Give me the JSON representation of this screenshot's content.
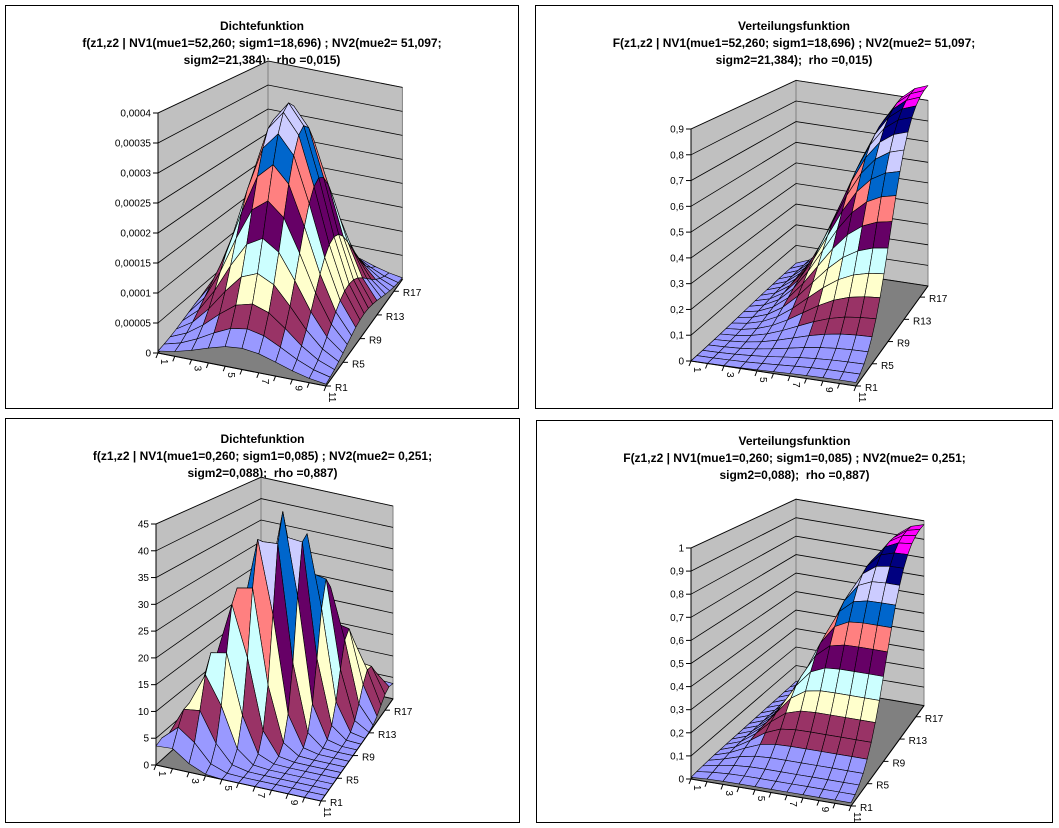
{
  "chart_data": [
    {
      "type": "heatmap",
      "surface": "3d-surface",
      "title": [
        "Dichtefunktion",
        "f(z1,z2 | NV1(mue1=52,260; sigm1=18,696) ; NV2(mue2= 51,097;",
        "sigm2=21,384);  rho =0,015)"
      ],
      "function": "density",
      "params": {
        "mue1": 52.26,
        "sigm1": 18.696,
        "mue2": 51.097,
        "sigm2": 21.384,
        "rho": 0.015
      },
      "z_axis": {
        "min": 0,
        "max": 0.0004,
        "ticks": [
          "0",
          "0,00005",
          "0,0001",
          "0,00015",
          "0,0002",
          "0,00025",
          "0,0003",
          "0,00035",
          "0,0004"
        ]
      },
      "x_tick_labels": [
        "1",
        "3",
        "5",
        "7",
        "9",
        "11"
      ],
      "series_tick_labels": [
        "R1",
        "R5",
        "R9",
        "R13",
        "R17"
      ],
      "grid": true
    },
    {
      "type": "heatmap",
      "surface": "3d-surface",
      "title": [
        "Verteilungsfunktion",
        "F(z1,z2 | NV1(mue1=52,260; sigm1=18,696) ; NV2(mue2= 51,097;",
        "sigm2=21,384);  rho =0,015)"
      ],
      "function": "distribution",
      "params": {
        "mue1": 52.26,
        "sigm1": 18.696,
        "mue2": 51.097,
        "sigm2": 21.384,
        "rho": 0.015
      },
      "z_axis": {
        "min": 0,
        "max": 0.9,
        "ticks": [
          "0",
          "0,1",
          "0,2",
          "0,3",
          "0,4",
          "0,5",
          "0,6",
          "0,7",
          "0,8",
          "0,9"
        ]
      },
      "x_tick_labels": [
        "1",
        "3",
        "5",
        "7",
        "9",
        "11"
      ],
      "series_tick_labels": [
        "R1",
        "R5",
        "R9",
        "R13",
        "R17"
      ],
      "grid": true
    },
    {
      "type": "heatmap",
      "surface": "3d-surface",
      "title": [
        "Dichtefunktion",
        "f(z1,z2 | NV1(mue1=0,260; sigm1=0,085) ; NV2(mue2= 0,251;",
        "sigm2=0,088);  rho =0,887)"
      ],
      "function": "density",
      "params": {
        "mue1": 0.26,
        "sigm1": 0.085,
        "mue2": 0.251,
        "sigm2": 0.088,
        "rho": 0.887
      },
      "z_axis": {
        "min": 0,
        "max": 45,
        "ticks": [
          "0",
          "5",
          "10",
          "15",
          "20",
          "25",
          "30",
          "35",
          "40",
          "45"
        ]
      },
      "x_tick_labels": [
        "1",
        "3",
        "5",
        "7",
        "9",
        "11"
      ],
      "series_tick_labels": [
        "R1",
        "R5",
        "R9",
        "R13",
        "R17"
      ],
      "grid": true
    },
    {
      "type": "heatmap",
      "surface": "3d-surface",
      "title": [
        "Verteilungsfunktion",
        "F(z1,z2 | NV1(mue1=0,260; sigm1=0,085) ; NV2(mue2= 0,251;",
        "sigm2=0,088);  rho =0,887)"
      ],
      "function": "distribution",
      "params": {
        "mue1": 0.26,
        "sigm1": 0.085,
        "mue2": 0.251,
        "sigm2": 0.088,
        "rho": 0.887
      },
      "z_axis": {
        "min": 0,
        "max": 1,
        "ticks": [
          "0",
          "0,1",
          "0,2",
          "0,3",
          "0,4",
          "0,5",
          "0,6",
          "0,7",
          "0,8",
          "0,9",
          "1"
        ]
      },
      "x_tick_labels": [
        "1",
        "3",
        "5",
        "7",
        "9",
        "11"
      ],
      "series_tick_labels": [
        "R1",
        "R5",
        "R9",
        "R13",
        "R17"
      ],
      "grid": true
    }
  ],
  "colors": {
    "wall": "#C0C0C0",
    "floor": "#808080",
    "bands": [
      "#9999FF",
      "#993366",
      "#FFFFCC",
      "#CCFFFF",
      "#660066",
      "#FF8080",
      "#0066CC",
      "#CCCCFF",
      "#000080",
      "#FF00FF"
    ]
  }
}
